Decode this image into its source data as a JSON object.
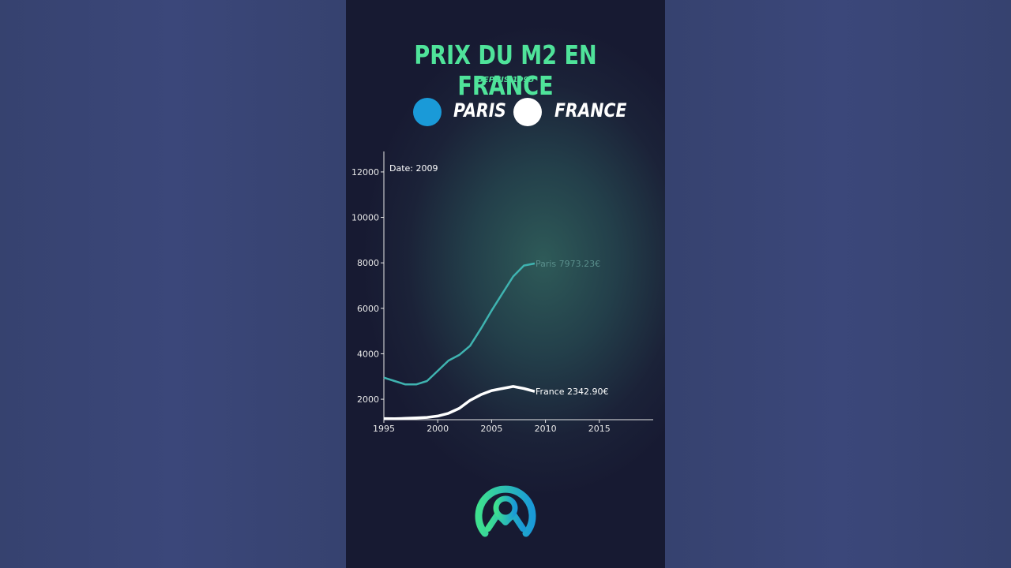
{
  "header": {
    "title": "PRIX DU M2 EN FRANCE",
    "subtitle": "DEPUIS 1995"
  },
  "legend": {
    "items": [
      {
        "label": "PARIS",
        "color": "#1a9ad8"
      },
      {
        "label": "FRANCE",
        "color": "#ffffff"
      }
    ]
  },
  "colors": {
    "title": "#4fe39a",
    "paris_line": "#3fb3b0",
    "france_line": "#ffffff"
  },
  "chart_data": {
    "type": "line",
    "title": "PRIX DU M2 EN FRANCE",
    "subtitle": "DEPUIS 1995",
    "xlabel": "",
    "ylabel": "",
    "xlim": [
      1995,
      2020
    ],
    "ylim": [
      1100,
      12900
    ],
    "x_ticks": [
      1995,
      2000,
      2005,
      2010,
      2015
    ],
    "y_ticks": [
      2000,
      4000,
      6000,
      8000,
      10000,
      12000
    ],
    "grid": false,
    "legend_position": "top",
    "annotation": "Date: 2009",
    "series": [
      {
        "name": "Paris",
        "end_label": "Paris 7973.23€",
        "x": [
          1995,
          1996,
          1997,
          1998,
          1999,
          2000,
          2001,
          2002,
          2003,
          2004,
          2005,
          2006,
          2007,
          2008,
          2009
        ],
        "values": [
          2950,
          2800,
          2650,
          2650,
          2800,
          3250,
          3700,
          3950,
          4350,
          5100,
          5900,
          6650,
          7400,
          7880,
          7973
        ]
      },
      {
        "name": "France",
        "end_label": "France 2342.90€",
        "x": [
          1995,
          1996,
          1997,
          1998,
          1999,
          2000,
          2001,
          2002,
          2003,
          2004,
          2005,
          2006,
          2007,
          2008,
          2009
        ],
        "values": [
          1150,
          1140,
          1160,
          1180,
          1200,
          1260,
          1380,
          1600,
          1950,
          2200,
          2380,
          2470,
          2560,
          2470,
          2343
        ]
      }
    ]
  }
}
